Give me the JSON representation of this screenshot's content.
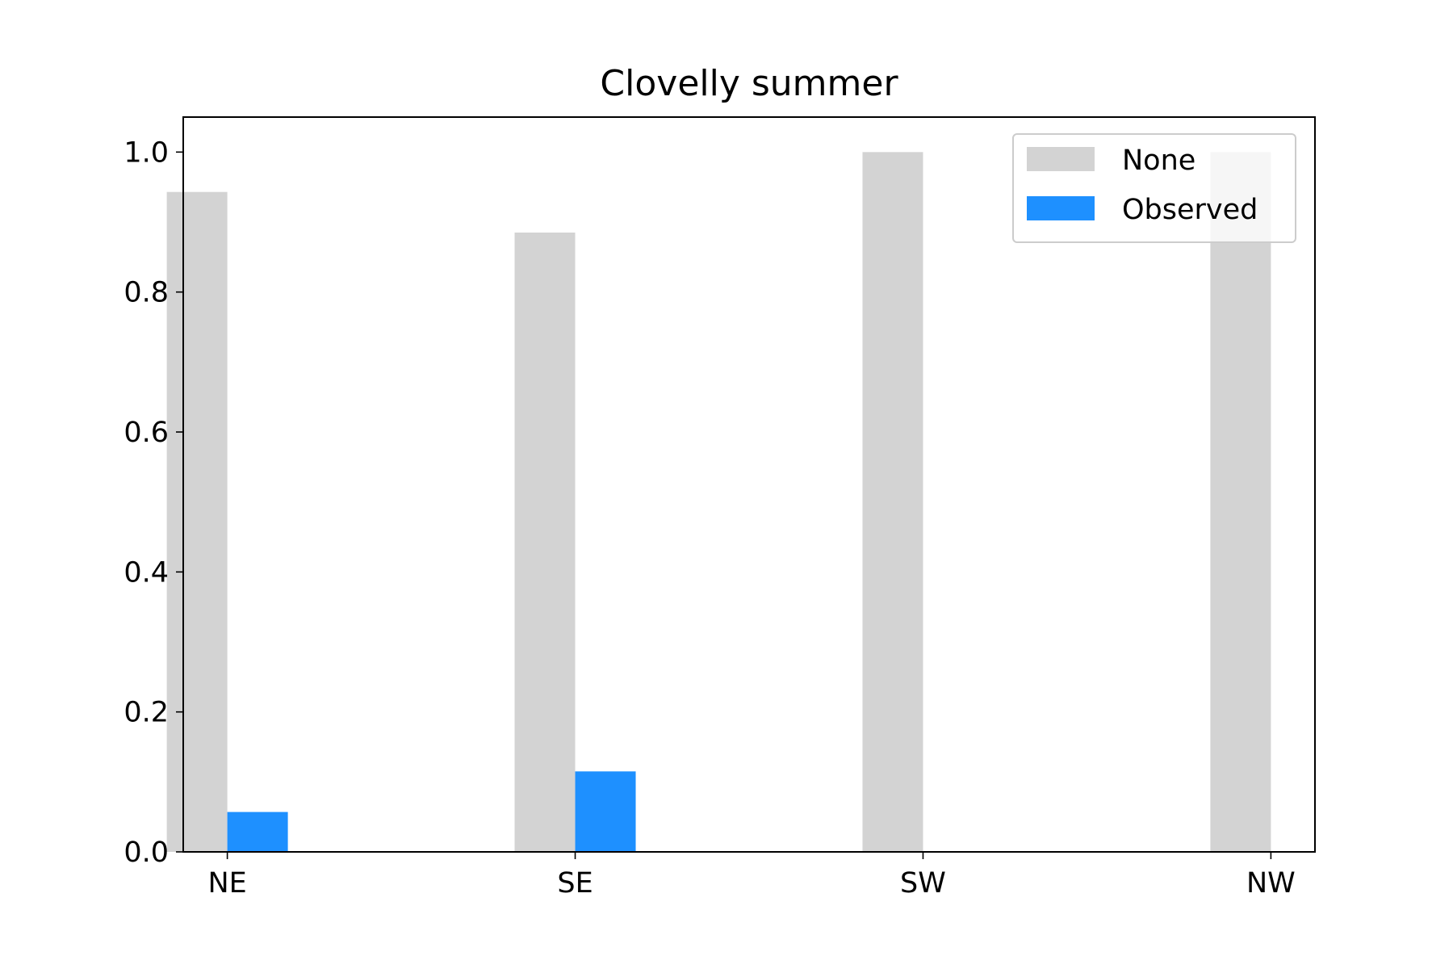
{
  "chart_data": {
    "type": "bar",
    "title": "Clovelly summer",
    "xlabel": "",
    "ylabel": "",
    "categories": [
      "NE",
      "SE",
      "SW",
      "NW"
    ],
    "series": [
      {
        "name": "None",
        "color": "#d3d3d3",
        "values": [
          0.943,
          0.885,
          1.0,
          1.0
        ]
      },
      {
        "name": "Observed",
        "color": "#1e90ff",
        "values": [
          0.057,
          0.115,
          0.0,
          0.0
        ]
      }
    ],
    "ylim": [
      0,
      1.05
    ],
    "yticks": [
      0.0,
      0.2,
      0.4,
      0.6,
      0.8,
      1.0
    ],
    "ytick_labels": [
      "0.0",
      "0.2",
      "0.4",
      "0.6",
      "0.8",
      "1.0"
    ],
    "grid": false,
    "legend_position": "top-right"
  }
}
